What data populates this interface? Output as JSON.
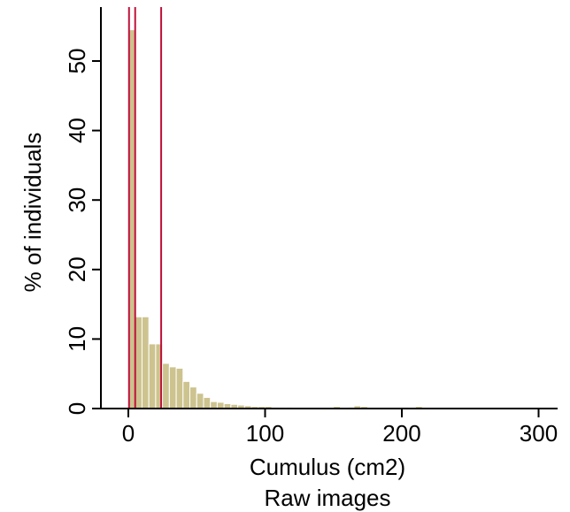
{
  "chart_data": {
    "type": "histogram",
    "title": "",
    "xlabel": "Cumulus (cm2)",
    "subtitle": "Raw images",
    "ylabel": "% of individuals",
    "xlim": [
      -20,
      310
    ],
    "ylim": [
      0,
      57
    ],
    "x_ticks": [
      0,
      100,
      200,
      300
    ],
    "y_ticks": [
      0,
      10,
      20,
      30,
      40,
      50
    ],
    "bin_width": 5,
    "bins": [
      {
        "x": 0,
        "value": 54.5
      },
      {
        "x": 5,
        "value": 13.2
      },
      {
        "x": 10,
        "value": 13.2
      },
      {
        "x": 15,
        "value": 9.3
      },
      {
        "x": 20,
        "value": 9.3
      },
      {
        "x": 25,
        "value": 6.5
      },
      {
        "x": 30,
        "value": 6.0
      },
      {
        "x": 35,
        "value": 5.8
      },
      {
        "x": 40,
        "value": 3.9
      },
      {
        "x": 45,
        "value": 3.1
      },
      {
        "x": 50,
        "value": 2.2
      },
      {
        "x": 55,
        "value": 1.6
      },
      {
        "x": 60,
        "value": 1.0
      },
      {
        "x": 65,
        "value": 0.9
      },
      {
        "x": 70,
        "value": 0.7
      },
      {
        "x": 75,
        "value": 0.6
      },
      {
        "x": 80,
        "value": 0.5
      },
      {
        "x": 85,
        "value": 0.4
      },
      {
        "x": 90,
        "value": 0.3
      },
      {
        "x": 95,
        "value": 0.3
      },
      {
        "x": 100,
        "value": 0.3
      },
      {
        "x": 105,
        "value": 0.2
      },
      {
        "x": 110,
        "value": 0.2
      },
      {
        "x": 115,
        "value": 0.2
      },
      {
        "x": 120,
        "value": 0.1
      },
      {
        "x": 150,
        "value": 0.3
      },
      {
        "x": 160,
        "value": 0.2
      },
      {
        "x": 165,
        "value": 0.4
      },
      {
        "x": 170,
        "value": 0.3
      },
      {
        "x": 200,
        "value": 0.2
      },
      {
        "x": 210,
        "value": 0.3
      }
    ],
    "reference_lines": [
      0.5,
      5,
      24
    ],
    "bar_color": "#cdc38f",
    "bar_edge_color": "#ffffff",
    "reference_line_color": "#c0103a",
    "grid": false,
    "legend": "none"
  }
}
